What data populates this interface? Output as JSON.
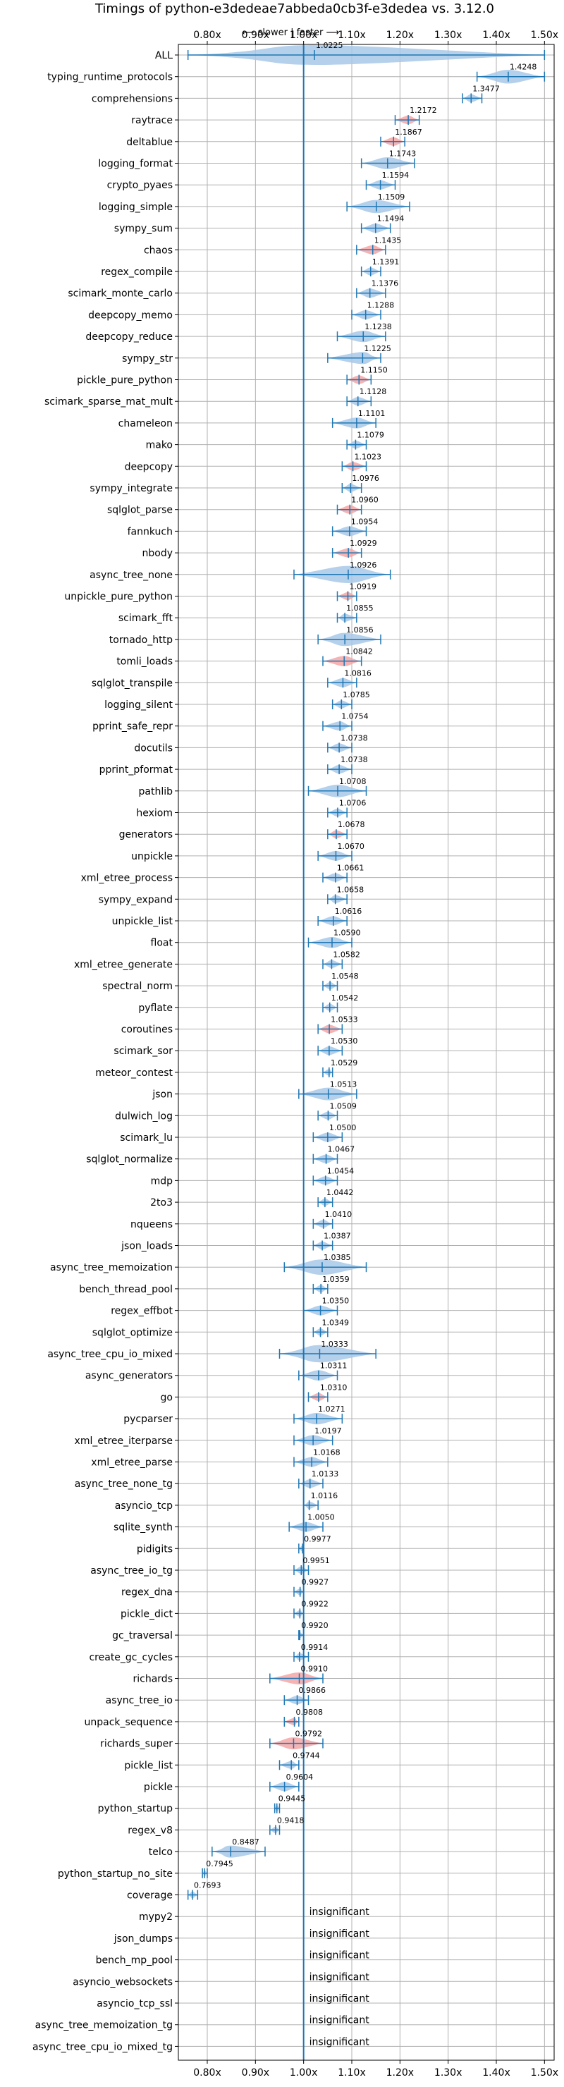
{
  "chart_data": {
    "type": "violin",
    "title": "Timings of python-e3dedeae7abbeda0cb3f-e3dedea vs. 3.12.0",
    "direction_label": "⟵ slower | faster ⟶",
    "xlim": [
      0.74,
      1.52
    ],
    "xticks": [
      0.8,
      0.9,
      1.0,
      1.1,
      1.2,
      1.3,
      1.4,
      1.5
    ],
    "xtick_labels": [
      "0.80x",
      "0.90x",
      "1.00x",
      "1.10x",
      "1.20x",
      "1.30x",
      "1.40x",
      "1.50x"
    ],
    "reference_line": 1.0,
    "insignificant_label": "insignificant",
    "colors": {
      "faster": "#a8c8e8",
      "slower": "#f4a6a6",
      "line": "#1f77b4",
      "grid": "#b0b0b0"
    },
    "benchmarks": [
      {
        "name": "ALL",
        "value": 1.0225,
        "lo": 0.76,
        "hi": 1.5,
        "color": "faster"
      },
      {
        "name": "typing_runtime_protocols",
        "value": 1.4248,
        "lo": 1.36,
        "hi": 1.5,
        "color": "faster"
      },
      {
        "name": "comprehensions",
        "value": 1.3477,
        "lo": 1.33,
        "hi": 1.37,
        "color": "faster"
      },
      {
        "name": "raytrace",
        "value": 1.2172,
        "lo": 1.19,
        "hi": 1.24,
        "color": "slower"
      },
      {
        "name": "deltablue",
        "value": 1.1867,
        "lo": 1.16,
        "hi": 1.21,
        "color": "slower"
      },
      {
        "name": "logging_format",
        "value": 1.1743,
        "lo": 1.12,
        "hi": 1.23,
        "color": "faster"
      },
      {
        "name": "crypto_pyaes",
        "value": 1.1594,
        "lo": 1.13,
        "hi": 1.19,
        "color": "faster"
      },
      {
        "name": "logging_simple",
        "value": 1.1509,
        "lo": 1.09,
        "hi": 1.22,
        "color": "faster"
      },
      {
        "name": "sympy_sum",
        "value": 1.1494,
        "lo": 1.12,
        "hi": 1.18,
        "color": "faster"
      },
      {
        "name": "chaos",
        "value": 1.1435,
        "lo": 1.11,
        "hi": 1.17,
        "color": "slower"
      },
      {
        "name": "regex_compile",
        "value": 1.1391,
        "lo": 1.12,
        "hi": 1.16,
        "color": "faster"
      },
      {
        "name": "scimark_monte_carlo",
        "value": 1.1376,
        "lo": 1.11,
        "hi": 1.17,
        "color": "faster"
      },
      {
        "name": "deepcopy_memo",
        "value": 1.1288,
        "lo": 1.1,
        "hi": 1.16,
        "color": "faster"
      },
      {
        "name": "deepcopy_reduce",
        "value": 1.1238,
        "lo": 1.07,
        "hi": 1.17,
        "color": "faster"
      },
      {
        "name": "sympy_str",
        "value": 1.1225,
        "lo": 1.05,
        "hi": 1.16,
        "color": "faster"
      },
      {
        "name": "pickle_pure_python",
        "value": 1.115,
        "lo": 1.09,
        "hi": 1.14,
        "color": "slower"
      },
      {
        "name": "scimark_sparse_mat_mult",
        "value": 1.1128,
        "lo": 1.09,
        "hi": 1.14,
        "color": "faster"
      },
      {
        "name": "chameleon",
        "value": 1.1101,
        "lo": 1.06,
        "hi": 1.15,
        "color": "faster"
      },
      {
        "name": "mako",
        "value": 1.1079,
        "lo": 1.09,
        "hi": 1.13,
        "color": "faster"
      },
      {
        "name": "deepcopy",
        "value": 1.1023,
        "lo": 1.08,
        "hi": 1.13,
        "color": "slower"
      },
      {
        "name": "sympy_integrate",
        "value": 1.0976,
        "lo": 1.08,
        "hi": 1.12,
        "color": "faster"
      },
      {
        "name": "sqlglot_parse",
        "value": 1.096,
        "lo": 1.07,
        "hi": 1.12,
        "color": "slower"
      },
      {
        "name": "fannkuch",
        "value": 1.0954,
        "lo": 1.06,
        "hi": 1.13,
        "color": "faster"
      },
      {
        "name": "nbody",
        "value": 1.0929,
        "lo": 1.06,
        "hi": 1.12,
        "color": "slower"
      },
      {
        "name": "async_tree_none",
        "value": 1.0926,
        "lo": 0.98,
        "hi": 1.18,
        "color": "faster"
      },
      {
        "name": "unpickle_pure_python",
        "value": 1.0919,
        "lo": 1.07,
        "hi": 1.11,
        "color": "slower"
      },
      {
        "name": "scimark_fft",
        "value": 1.0855,
        "lo": 1.07,
        "hi": 1.11,
        "color": "faster"
      },
      {
        "name": "tornado_http",
        "value": 1.0856,
        "lo": 1.03,
        "hi": 1.16,
        "color": "faster"
      },
      {
        "name": "tomli_loads",
        "value": 1.0842,
        "lo": 1.04,
        "hi": 1.12,
        "color": "slower"
      },
      {
        "name": "sqlglot_transpile",
        "value": 1.0816,
        "lo": 1.05,
        "hi": 1.11,
        "color": "faster"
      },
      {
        "name": "logging_silent",
        "value": 1.0785,
        "lo": 1.06,
        "hi": 1.1,
        "color": "faster"
      },
      {
        "name": "pprint_safe_repr",
        "value": 1.0754,
        "lo": 1.04,
        "hi": 1.1,
        "color": "faster"
      },
      {
        "name": "docutils",
        "value": 1.0738,
        "lo": 1.05,
        "hi": 1.1,
        "color": "faster"
      },
      {
        "name": "pprint_pformat",
        "value": 1.0738,
        "lo": 1.05,
        "hi": 1.1,
        "color": "faster"
      },
      {
        "name": "pathlib",
        "value": 1.0708,
        "lo": 1.01,
        "hi": 1.13,
        "color": "faster"
      },
      {
        "name": "hexiom",
        "value": 1.0706,
        "lo": 1.05,
        "hi": 1.09,
        "color": "faster"
      },
      {
        "name": "generators",
        "value": 1.0678,
        "lo": 1.05,
        "hi": 1.09,
        "color": "slower"
      },
      {
        "name": "unpickle",
        "value": 1.067,
        "lo": 1.03,
        "hi": 1.1,
        "color": "faster"
      },
      {
        "name": "xml_etree_process",
        "value": 1.0661,
        "lo": 1.04,
        "hi": 1.09,
        "color": "faster"
      },
      {
        "name": "sympy_expand",
        "value": 1.0658,
        "lo": 1.05,
        "hi": 1.09,
        "color": "faster"
      },
      {
        "name": "unpickle_list",
        "value": 1.0616,
        "lo": 1.03,
        "hi": 1.09,
        "color": "faster"
      },
      {
        "name": "float",
        "value": 1.059,
        "lo": 1.01,
        "hi": 1.1,
        "color": "faster"
      },
      {
        "name": "xml_etree_generate",
        "value": 1.0582,
        "lo": 1.04,
        "hi": 1.08,
        "color": "faster"
      },
      {
        "name": "spectral_norm",
        "value": 1.0548,
        "lo": 1.04,
        "hi": 1.07,
        "color": "faster"
      },
      {
        "name": "pyflate",
        "value": 1.0542,
        "lo": 1.04,
        "hi": 1.07,
        "color": "faster"
      },
      {
        "name": "coroutines",
        "value": 1.0533,
        "lo": 1.03,
        "hi": 1.08,
        "color": "slower"
      },
      {
        "name": "scimark_sor",
        "value": 1.053,
        "lo": 1.03,
        "hi": 1.08,
        "color": "faster"
      },
      {
        "name": "meteor_contest",
        "value": 1.0529,
        "lo": 1.04,
        "hi": 1.06,
        "color": "faster"
      },
      {
        "name": "json",
        "value": 1.0513,
        "lo": 0.99,
        "hi": 1.11,
        "color": "faster"
      },
      {
        "name": "dulwich_log",
        "value": 1.0509,
        "lo": 1.03,
        "hi": 1.07,
        "color": "faster"
      },
      {
        "name": "scimark_lu",
        "value": 1.05,
        "lo": 1.02,
        "hi": 1.08,
        "color": "faster"
      },
      {
        "name": "sqlglot_normalize",
        "value": 1.0467,
        "lo": 1.02,
        "hi": 1.07,
        "color": "faster"
      },
      {
        "name": "mdp",
        "value": 1.0454,
        "lo": 1.02,
        "hi": 1.07,
        "color": "faster"
      },
      {
        "name": "2to3",
        "value": 1.0442,
        "lo": 1.03,
        "hi": 1.06,
        "color": "faster"
      },
      {
        "name": "nqueens",
        "value": 1.041,
        "lo": 1.02,
        "hi": 1.06,
        "color": "faster"
      },
      {
        "name": "json_loads",
        "value": 1.0387,
        "lo": 1.02,
        "hi": 1.06,
        "color": "faster"
      },
      {
        "name": "async_tree_memoization",
        "value": 1.0385,
        "lo": 0.96,
        "hi": 1.13,
        "color": "faster"
      },
      {
        "name": "bench_thread_pool",
        "value": 1.0359,
        "lo": 1.02,
        "hi": 1.05,
        "color": "faster"
      },
      {
        "name": "regex_effbot",
        "value": 1.035,
        "lo": 1.0,
        "hi": 1.07,
        "color": "faster"
      },
      {
        "name": "sqlglot_optimize",
        "value": 1.0349,
        "lo": 1.02,
        "hi": 1.05,
        "color": "faster"
      },
      {
        "name": "async_tree_cpu_io_mixed",
        "value": 1.0333,
        "lo": 0.95,
        "hi": 1.15,
        "color": "faster"
      },
      {
        "name": "async_generators",
        "value": 1.0311,
        "lo": 0.99,
        "hi": 1.07,
        "color": "faster"
      },
      {
        "name": "go",
        "value": 1.031,
        "lo": 1.01,
        "hi": 1.05,
        "color": "slower"
      },
      {
        "name": "pycparser",
        "value": 1.0271,
        "lo": 0.98,
        "hi": 1.08,
        "color": "faster"
      },
      {
        "name": "xml_etree_iterparse",
        "value": 1.0197,
        "lo": 0.98,
        "hi": 1.06,
        "color": "faster"
      },
      {
        "name": "xml_etree_parse",
        "value": 1.0168,
        "lo": 0.98,
        "hi": 1.05,
        "color": "faster"
      },
      {
        "name": "async_tree_none_tg",
        "value": 1.0133,
        "lo": 0.99,
        "hi": 1.04,
        "color": "faster"
      },
      {
        "name": "asyncio_tcp",
        "value": 1.0116,
        "lo": 1.0,
        "hi": 1.03,
        "color": "faster"
      },
      {
        "name": "sqlite_synth",
        "value": 1.005,
        "lo": 0.97,
        "hi": 1.04,
        "color": "faster"
      },
      {
        "name": "pidigits",
        "value": 0.9977,
        "lo": 0.99,
        "hi": 1.0,
        "color": "faster"
      },
      {
        "name": "async_tree_io_tg",
        "value": 0.9951,
        "lo": 0.98,
        "hi": 1.01,
        "color": "faster"
      },
      {
        "name": "regex_dna",
        "value": 0.9927,
        "lo": 0.98,
        "hi": 1.0,
        "color": "faster"
      },
      {
        "name": "pickle_dict",
        "value": 0.9922,
        "lo": 0.98,
        "hi": 1.0,
        "color": "faster"
      },
      {
        "name": "gc_traversal",
        "value": 0.992,
        "lo": 0.99,
        "hi": 1.0,
        "color": "faster"
      },
      {
        "name": "create_gc_cycles",
        "value": 0.9914,
        "lo": 0.98,
        "hi": 1.01,
        "color": "faster"
      },
      {
        "name": "richards",
        "value": 0.991,
        "lo": 0.93,
        "hi": 1.04,
        "color": "slower"
      },
      {
        "name": "async_tree_io",
        "value": 0.9866,
        "lo": 0.96,
        "hi": 1.01,
        "color": "faster"
      },
      {
        "name": "unpack_sequence",
        "value": 0.9808,
        "lo": 0.96,
        "hi": 0.99,
        "color": "slower"
      },
      {
        "name": "richards_super",
        "value": 0.9792,
        "lo": 0.93,
        "hi": 1.04,
        "color": "slower"
      },
      {
        "name": "pickle_list",
        "value": 0.9744,
        "lo": 0.95,
        "hi": 0.99,
        "color": "faster"
      },
      {
        "name": "pickle",
        "value": 0.9604,
        "lo": 0.93,
        "hi": 0.99,
        "color": "faster"
      },
      {
        "name": "python_startup",
        "value": 0.9445,
        "lo": 0.94,
        "hi": 0.95,
        "color": "faster"
      },
      {
        "name": "regex_v8",
        "value": 0.9418,
        "lo": 0.93,
        "hi": 0.95,
        "color": "faster"
      },
      {
        "name": "telco",
        "value": 0.8487,
        "lo": 0.81,
        "hi": 0.92,
        "color": "faster"
      },
      {
        "name": "python_startup_no_site",
        "value": 0.7945,
        "lo": 0.79,
        "hi": 0.8,
        "color": "faster"
      },
      {
        "name": "coverage",
        "value": 0.7693,
        "lo": 0.76,
        "hi": 0.78,
        "color": "faster"
      },
      {
        "name": "mypy2",
        "insignificant": true
      },
      {
        "name": "json_dumps",
        "insignificant": true
      },
      {
        "name": "bench_mp_pool",
        "insignificant": true
      },
      {
        "name": "asyncio_websockets",
        "insignificant": true
      },
      {
        "name": "asyncio_tcp_ssl",
        "insignificant": true
      },
      {
        "name": "async_tree_memoization_tg",
        "insignificant": true
      },
      {
        "name": "async_tree_cpu_io_mixed_tg",
        "insignificant": true
      }
    ]
  }
}
